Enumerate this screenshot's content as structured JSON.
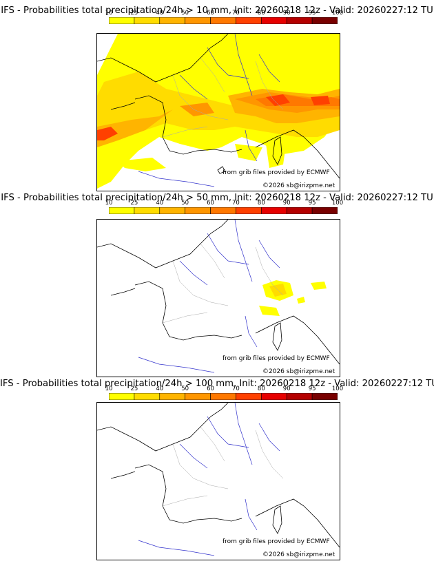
{
  "colorbar": {
    "ticks": [
      "10",
      "25",
      "40",
      "50",
      "60",
      "70",
      "80",
      "90",
      "95",
      "100"
    ],
    "colors": [
      "#ffff00",
      "#ffdc00",
      "#ffb400",
      "#ff9600",
      "#ff7800",
      "#ff4000",
      "#e60000",
      "#b40000",
      "#780000"
    ]
  },
  "panels": [
    {
      "title": "IFS - Probabilities total precipitation/24h > 10 mm, Init: 20260218 12z - Valid: 20260227:12 TU",
      "credit_source": "from grib files provided by ECMWF",
      "credit_copyright": "©2026 sb@irizpme.net"
    },
    {
      "title": "IFS - Probabilities total precipitation/24h > 50 mm, Init: 20260218 12z - Valid: 20260227:12 TU",
      "credit_source": "from grib files provided by ECMWF",
      "credit_copyright": "©2026 sb@irizpme.net"
    },
    {
      "title": "IFS - Probabilities total precipitation/24h > 100 mm, Init: 20260218 12z - Valid: 20260227:12 TU",
      "credit_source": "from grib files provided by ECMWF",
      "credit_copyright": "©2026 sb@irizpme.net"
    }
  ],
  "colors": {
    "coast": "#000000",
    "rivers": "#3333cc",
    "regions": "#aaaaaa"
  }
}
